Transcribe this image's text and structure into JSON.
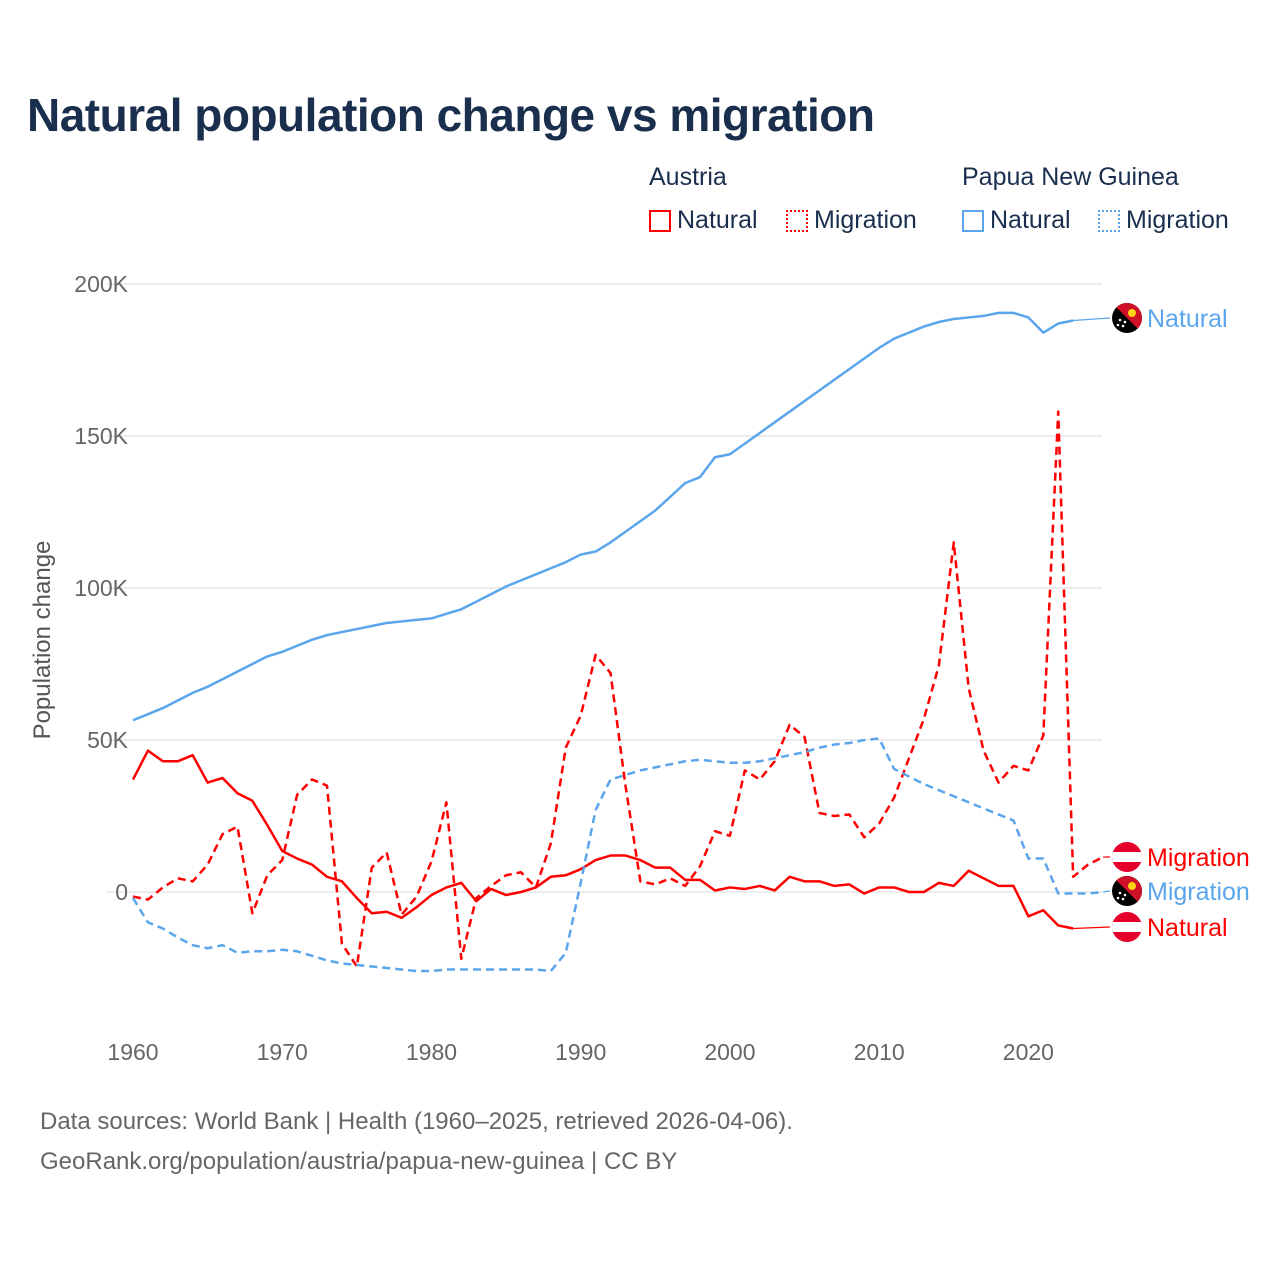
{
  "title": "Natural population change vs migration",
  "legend": {
    "groups": [
      {
        "name": "Austria",
        "items": [
          {
            "label": "Natural",
            "style": "solid"
          },
          {
            "label": "Migration",
            "style": "dotted"
          }
        ],
        "color": "#ff0000"
      },
      {
        "name": "Papua New Guinea",
        "items": [
          {
            "label": "Natural",
            "style": "solid"
          },
          {
            "label": "Migration",
            "style": "dotted"
          }
        ],
        "color": "#5aa5eb"
      }
    ]
  },
  "footer": {
    "line1": "Data sources: World Bank | Health (1960–2025, retrieved 2026-04-06).",
    "line2": "GeoRank.org/population/austria/papua-new-guinea | CC BY"
  },
  "chart_data": {
    "type": "line",
    "title": "Natural population change vs migration",
    "xlabel": "",
    "ylabel": "Population change",
    "xlim": [
      1960,
      2025
    ],
    "ylim": [
      -30000,
      200000
    ],
    "xticks": [
      1960,
      1970,
      1980,
      1990,
      2000,
      2010,
      2020
    ],
    "xtick_labels": [
      "1960",
      "1970",
      "1980",
      "1990",
      "2000",
      "2010",
      "2020"
    ],
    "yticks": [
      0,
      50000,
      100000,
      150000,
      200000
    ],
    "ytick_labels": [
      "0",
      "50K",
      "100K",
      "150K",
      "200K"
    ],
    "grid": true,
    "legend_position": "top-right",
    "x_start": 1960,
    "series": [
      {
        "name": "Austria Natural",
        "country": "Austria",
        "kind": "Natural",
        "end_label": "Natural",
        "color": "#ff0000",
        "dash": "solid",
        "values": [
          37000,
          46500,
          43000,
          43000,
          45000,
          36000,
          37500,
          32500,
          30000,
          22000,
          13500,
          11000,
          9000,
          5000,
          3500,
          -2000,
          -7000,
          -6500,
          -8500,
          -5000,
          -1000,
          1500,
          3000,
          -3000,
          1000,
          -1000,
          0,
          1500,
          5000,
          5500,
          7500,
          10500,
          12000,
          12000,
          10500,
          8000,
          8000,
          4000,
          4000,
          500,
          1500,
          1000,
          2000,
          500,
          5000,
          3500,
          3500,
          2000,
          2500,
          -500,
          1500,
          1500,
          0,
          0,
          3000,
          2000,
          7000,
          4500,
          2000,
          2000,
          -8000,
          -6000,
          -11000,
          -12000
        ]
      },
      {
        "name": "Austria Migration",
        "country": "Austria",
        "kind": "Migration",
        "end_label": "Migration",
        "color": "#ff0000",
        "dash": "dashed",
        "values": [
          -1500,
          -2500,
          1500,
          4500,
          3500,
          9000,
          19000,
          21500,
          -7000,
          5500,
          10500,
          32000,
          37000,
          35000,
          -17000,
          -24500,
          8000,
          13000,
          -7500,
          -1500,
          10000,
          29500,
          -22000,
          -2000,
          2000,
          5500,
          6500,
          1500,
          16000,
          47500,
          58000,
          78000,
          72000,
          35000,
          3500,
          2500,
          4500,
          2000,
          8500,
          20000,
          18500,
          40000,
          37000,
          43000,
          55000,
          51000,
          26000,
          25000,
          25500,
          18000,
          22500,
          31000,
          44000,
          57000,
          74500,
          115000,
          67000,
          46500,
          36000,
          41500,
          40000,
          51500,
          158000,
          5000,
          9000,
          11500
        ]
      },
      {
        "name": "Papua New Guinea Natural",
        "country": "Papua New Guinea",
        "kind": "Natural",
        "end_label": "Natural",
        "color": "#5aa5eb",
        "dash": "solid",
        "values": [
          56500,
          58500,
          60500,
          63000,
          65500,
          67500,
          70000,
          72500,
          75000,
          77500,
          79000,
          81000,
          83000,
          84500,
          85500,
          86500,
          87500,
          88500,
          89000,
          89500,
          90000,
          91500,
          93000,
          95500,
          98000,
          100500,
          102500,
          104500,
          106500,
          108500,
          111000,
          112000,
          115000,
          118500,
          122000,
          125500,
          130000,
          134500,
          136500,
          143000,
          144000,
          147500,
          151000,
          154500,
          158000,
          161500,
          165000,
          168500,
          172000,
          175500,
          179000,
          182000,
          184000,
          186000,
          187500,
          188500,
          189000,
          189500,
          190500,
          190500,
          189000,
          184000,
          187000,
          188000
        ]
      },
      {
        "name": "Papua New Guinea Migration",
        "country": "Papua New Guinea",
        "kind": "Migration",
        "end_label": "Migration",
        "color": "#5aa5eb",
        "dash": "dashed",
        "values": [
          -2000,
          -10000,
          -12000,
          -15000,
          -17500,
          -18500,
          -17500,
          -20000,
          -19500,
          -19500,
          -19000,
          -19500,
          -21000,
          -22500,
          -23500,
          -24000,
          -24500,
          -25000,
          -25500,
          -26000,
          -26000,
          -25500,
          -25500,
          -25500,
          -25500,
          -25500,
          -25500,
          -25500,
          -26000,
          -20000,
          3000,
          27000,
          37000,
          38500,
          40000,
          41000,
          42000,
          43000,
          43500,
          43000,
          42500,
          42500,
          43000,
          44000,
          45000,
          46000,
          47500,
          48500,
          49000,
          50000,
          50500,
          40500,
          38000,
          35500,
          33500,
          31500,
          29500,
          27500,
          25500,
          23500,
          11000,
          11000,
          -500,
          -500,
          -500,
          0
        ]
      }
    ]
  }
}
